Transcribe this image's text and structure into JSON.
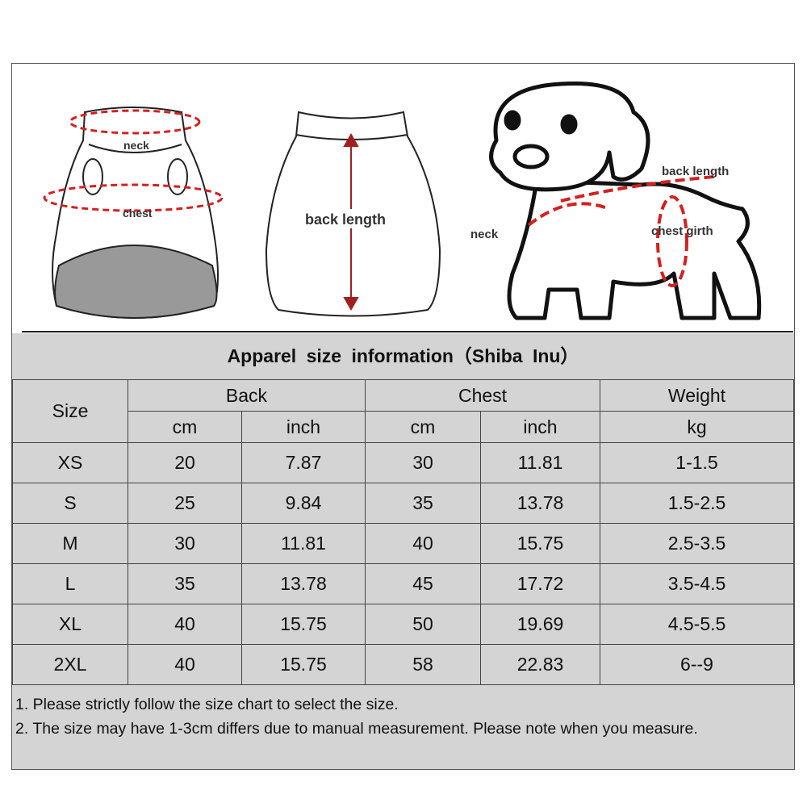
{
  "illustration": {
    "vest_front": {
      "neck_label": "neck",
      "chest_label": "chest"
    },
    "vest_back": {
      "back_length_label": "back length"
    },
    "dog": {
      "back_length_label": "back length",
      "neck_label": "neck",
      "chest_girth_label": "chest girth"
    },
    "accent_color": "#d42020"
  },
  "table": {
    "title": "Apparel  size  information（Shiba Inu）",
    "headers": {
      "size": "Size",
      "back": "Back",
      "chest": "Chest",
      "weight": "Weight"
    },
    "units": [
      "cm",
      "inch",
      "cm",
      "inch",
      "kg"
    ],
    "rows": [
      [
        "XS",
        "20",
        "7.87",
        "30",
        "11.81",
        "1-1.5"
      ],
      [
        "S",
        "25",
        "9.84",
        "35",
        "13.78",
        "1.5-2.5"
      ],
      [
        "M",
        "30",
        "11.81",
        "40",
        "15.75",
        "2.5-3.5"
      ],
      [
        "L",
        "35",
        "13.78",
        "45",
        "17.72",
        "3.5-4.5"
      ],
      [
        "XL",
        "40",
        "15.75",
        "50",
        "19.69",
        "4.5-5.5"
      ],
      [
        "2XL",
        "40",
        "15.75",
        "58",
        "22.83",
        "6--9"
      ]
    ]
  },
  "notes": [
    "1. Please strictly follow the size chart  to select the size.",
    "2. The size may have 1-3cm differs due to manual measurement. Please note when you measure."
  ]
}
